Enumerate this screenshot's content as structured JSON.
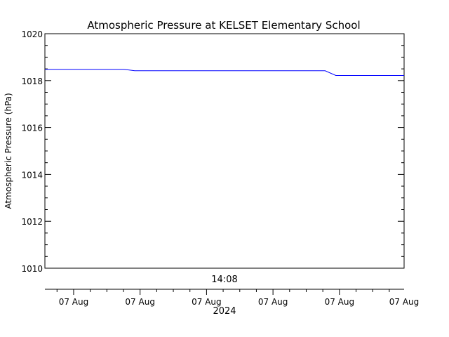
{
  "chart_data": {
    "type": "line",
    "title": "Atmospheric Pressure at KELSET Elementary School",
    "ylabel": "Atmospheric Pressure (hPa)",
    "ylim": [
      1010,
      1020
    ],
    "y_ticks": [
      1010,
      1012,
      1014,
      1016,
      1018,
      1020
    ],
    "y_minor_step": 0.5,
    "x_domain": [
      0,
      1
    ],
    "x_major_ticks": [
      0.08,
      0.265,
      0.45,
      0.635,
      0.82,
      1.0
    ],
    "x_tick_labels": [
      "07 Aug",
      "07 Aug",
      "07 Aug",
      "07 Aug",
      "07 Aug",
      "07 Aug"
    ],
    "x_year_label": "2024",
    "x_time_label": "14:08",
    "line_color": "#0000ff",
    "axis_color": "#000000",
    "grid": false,
    "series": [
      {
        "x": [
          0.0,
          0.22,
          0.25,
          0.78,
          0.81,
          1.0
        ],
        "values": [
          1018.48,
          1018.48,
          1018.42,
          1018.42,
          1018.22,
          1018.22
        ]
      }
    ]
  }
}
